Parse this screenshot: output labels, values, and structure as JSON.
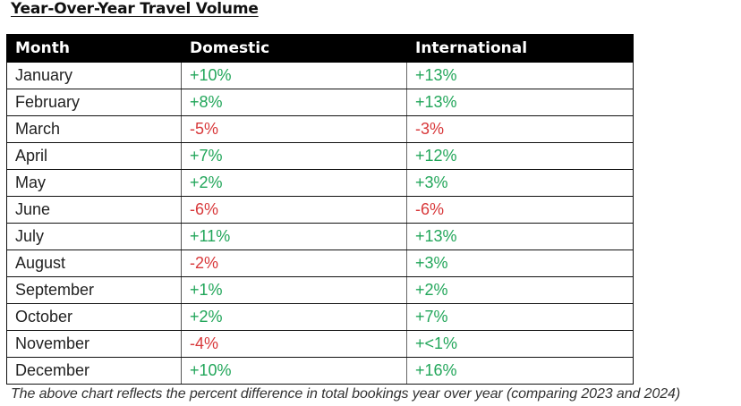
{
  "title": "Year-Over-Year Travel Volume",
  "table": {
    "headers": [
      "Month",
      "Domestic",
      "International"
    ],
    "rows": [
      {
        "month": "January",
        "domestic": "+10%",
        "international": "+13%",
        "d_sign": "pos",
        "i_sign": "pos"
      },
      {
        "month": "February",
        "domestic": "+8%",
        "international": "+13%",
        "d_sign": "pos",
        "i_sign": "pos"
      },
      {
        "month": "March",
        "domestic": "-5%",
        "international": "-3%",
        "d_sign": "neg",
        "i_sign": "neg"
      },
      {
        "month": "April",
        "domestic": "+7%",
        "international": "+12%",
        "d_sign": "pos",
        "i_sign": "pos"
      },
      {
        "month": "May",
        "domestic": "+2%",
        "international": "+3%",
        "d_sign": "pos",
        "i_sign": "pos"
      },
      {
        "month": "June",
        "domestic": "-6%",
        "international": "-6%",
        "d_sign": "neg",
        "i_sign": "neg"
      },
      {
        "month": "July",
        "domestic": "+11%",
        "international": "+13%",
        "d_sign": "pos",
        "i_sign": "pos"
      },
      {
        "month": "August",
        "domestic": "-2%",
        "international": "+3%",
        "d_sign": "neg",
        "i_sign": "pos"
      },
      {
        "month": "September",
        "domestic": "+1%",
        "international": "+2%",
        "d_sign": "pos",
        "i_sign": "pos"
      },
      {
        "month": "October",
        "domestic": "+2%",
        "international": "+7%",
        "d_sign": "pos",
        "i_sign": "pos"
      },
      {
        "month": "November",
        "domestic": "-4%",
        "international": "+<1%",
        "d_sign": "neg",
        "i_sign": "pos"
      },
      {
        "month": "December",
        "domestic": "+10%",
        "international": "+16%",
        "d_sign": "pos",
        "i_sign": "pos"
      }
    ]
  },
  "colors": {
    "positive": "#22a65a",
    "negative": "#d8383a",
    "header_bg": "#000000",
    "header_text": "#ffffff"
  },
  "note": "The above chart reflects the percent difference in total bookings year over year (comparing 2023 and 2024)"
}
